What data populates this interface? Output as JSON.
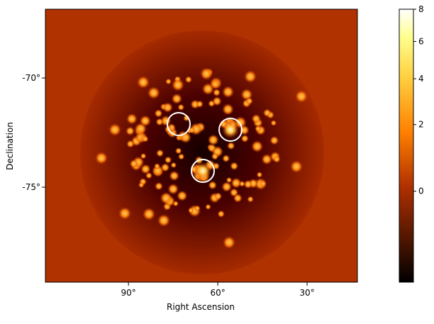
{
  "chart_data": {
    "type": "image",
    "x_label": "Right Ascension",
    "y_label": "Declination",
    "xlim": [
      117.9,
      13.1
    ],
    "ylim": [
      -79.35,
      -66.85
    ],
    "xticks": [
      {
        "value": 90,
        "label": "90°"
      },
      {
        "value": 60,
        "label": "60°"
      },
      {
        "value": 30,
        "label": "30°"
      }
    ],
    "yticks": [
      {
        "value": -75,
        "label": "-75°"
      },
      {
        "value": -70,
        "label": "-70°"
      }
    ],
    "colorbar": {
      "lim": [
        -1,
        8
      ],
      "stretch": "sqrt",
      "ticks": [
        0,
        2,
        4,
        6,
        8
      ],
      "colormap": "afmhot"
    }
  }
}
